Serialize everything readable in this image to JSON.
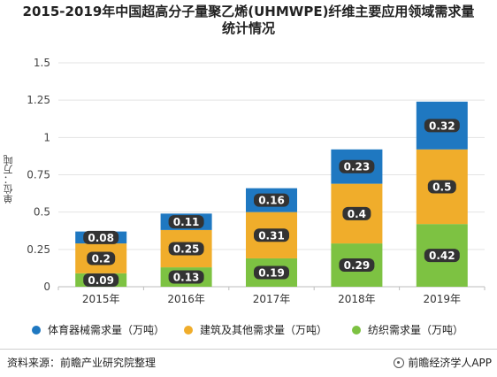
{
  "title": {
    "line1": "2015-2019年中国超高分子量聚乙烯(UHMWPE)纤维主要应用领域需求量",
    "line2": "统计情况"
  },
  "chart_data": {
    "type": "bar",
    "stacked": true,
    "categories": [
      "2015年",
      "2016年",
      "2017年",
      "2018年",
      "2019年"
    ],
    "series": [
      {
        "name": "纺织需求量（万吨）",
        "values": [
          0.09,
          0.13,
          0.19,
          0.29,
          0.42
        ],
        "color": "#7dc242"
      },
      {
        "name": "建筑及其他需求量（万吨）",
        "values": [
          0.2,
          0.25,
          0.31,
          0.4,
          0.5
        ],
        "color": "#f0ad2b"
      },
      {
        "name": "体育器械需求量（万吨）",
        "values": [
          0.08,
          0.11,
          0.16,
          0.23,
          0.32
        ],
        "color": "#1f78c1"
      }
    ],
    "ylabel": "单位：万吨",
    "ylim": [
      0,
      1.5
    ],
    "yticks": [
      "0",
      "0.25",
      "0.5",
      "0.75",
      "1",
      "1.25",
      "1.5"
    ],
    "ytick_values": [
      0,
      0.25,
      0.5,
      0.75,
      1,
      1.25,
      1.5
    ],
    "grid": true,
    "legend_position": "bottom"
  },
  "legend": [
    {
      "label": "体育器械需求量（万吨）",
      "color": "#1f78c1"
    },
    {
      "label": "建筑及其他需求量（万吨）",
      "color": "#f0ad2b"
    },
    {
      "label": "纺织需求量（万吨）",
      "color": "#7dc242"
    }
  ],
  "footer": {
    "source": "资料来源：前瞻产业研究院整理",
    "brand": "前瞻经济学人APP"
  }
}
